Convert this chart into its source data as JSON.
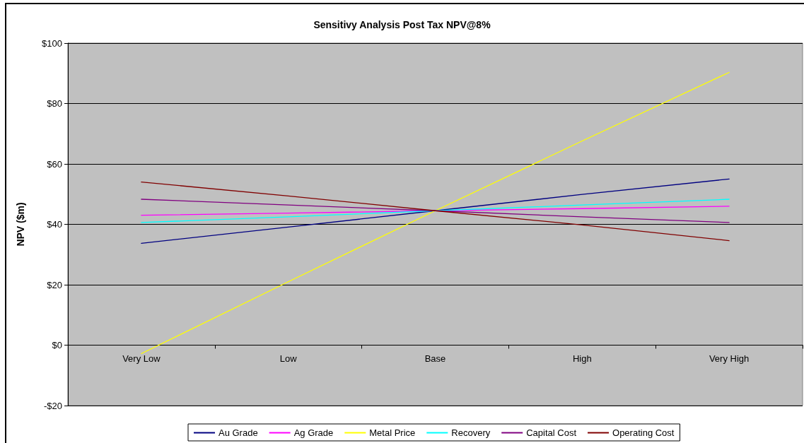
{
  "chart_data": {
    "type": "line",
    "title": "Sensitivy Analysis Post Tax NPV@8%",
    "ylabel": "NPV ($m)",
    "categories": [
      "Very Low",
      "Low",
      "Base",
      "High",
      "Very High"
    ],
    "series": [
      {
        "name": "Au Grade",
        "color": "#000080",
        "values": [
          33.7,
          39.1,
          44.5,
          49.9,
          55.0
        ]
      },
      {
        "name": "Ag Grade",
        "color": "#ff00ff",
        "values": [
          43.0,
          43.7,
          44.5,
          45.2,
          46.0
        ]
      },
      {
        "name": "Metal Price",
        "color": "#ffff00",
        "values": [
          -2.8,
          21.0,
          44.5,
          67.6,
          90.3
        ]
      },
      {
        "name": "Recovery",
        "color": "#00ffff",
        "values": [
          40.6,
          42.5,
          44.5,
          46.4,
          48.3
        ]
      },
      {
        "name": "Capital Cost",
        "color": "#800080",
        "values": [
          48.3,
          46.4,
          44.5,
          42.5,
          40.6
        ]
      },
      {
        "name": "Operating Cost",
        "color": "#800000",
        "values": [
          54.0,
          49.4,
          44.5,
          39.8,
          34.6
        ]
      }
    ],
    "ylim": [
      -20,
      100
    ],
    "yticks": [
      {
        "value": -20,
        "label": "-$20"
      },
      {
        "value": 0,
        "label": "$0"
      },
      {
        "value": 20,
        "label": "$20"
      },
      {
        "value": 40,
        "label": "$40"
      },
      {
        "value": 60,
        "label": "$60"
      },
      {
        "value": 80,
        "label": "$80"
      },
      {
        "value": 100,
        "label": "$100"
      }
    ],
    "grid": "y",
    "legend": "bottom",
    "marker": "none",
    "line_style": "solid"
  }
}
